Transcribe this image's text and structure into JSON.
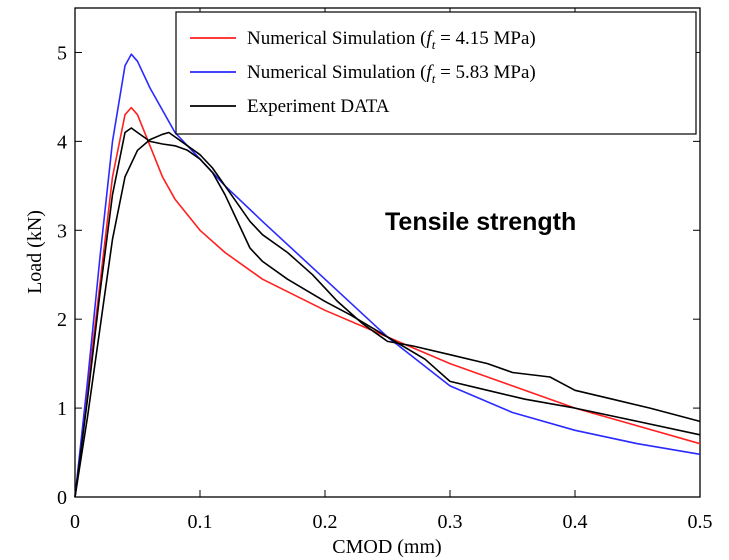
{
  "chart_data": {
    "type": "line",
    "xlabel": "CMOD (mm)",
    "ylabel": "Load (kN)",
    "xlim": [
      0,
      0.5
    ],
    "ylim": [
      0,
      5.5
    ],
    "xticks": [
      "0",
      "0.1",
      "0.2",
      "0.3",
      "0.4",
      "0.5"
    ],
    "yticks": [
      "0",
      "1",
      "2",
      "3",
      "4",
      "5"
    ],
    "grid": false,
    "legend_position": "top-right",
    "annotation": "Tensile strength",
    "legend": [
      {
        "prefix": "Numerical Simulation (",
        "symbol": "f",
        "sub": "t",
        "suffix": " = 4.15 MPa)",
        "color": "#ff2020"
      },
      {
        "prefix": "Numerical Simulation (",
        "symbol": "f",
        "sub": "t",
        "suffix": " = 5.83 MPa)",
        "color": "#2a2aff"
      },
      {
        "prefix": "Experiment DATA",
        "symbol": "",
        "sub": "",
        "suffix": "",
        "color": "#000000"
      }
    ],
    "series": [
      {
        "color": "#ff2020",
        "x": [
          0,
          0.01,
          0.02,
          0.03,
          0.04,
          0.045,
          0.05,
          0.06,
          0.07,
          0.08,
          0.1,
          0.12,
          0.15,
          0.2,
          0.25,
          0.3,
          0.35,
          0.4,
          0.45,
          0.5
        ],
        "y": [
          0,
          1.2,
          2.4,
          3.6,
          4.3,
          4.38,
          4.3,
          3.95,
          3.6,
          3.35,
          3.0,
          2.75,
          2.45,
          2.1,
          1.8,
          1.5,
          1.25,
          1.0,
          0.8,
          0.6
        ]
      },
      {
        "color": "#2a2aff",
        "x": [
          0,
          0.01,
          0.02,
          0.03,
          0.04,
          0.045,
          0.05,
          0.06,
          0.08,
          0.1,
          0.12,
          0.15,
          0.2,
          0.25,
          0.3,
          0.35,
          0.4,
          0.45,
          0.5
        ],
        "y": [
          0,
          1.3,
          2.7,
          4.0,
          4.85,
          4.98,
          4.9,
          4.6,
          4.1,
          3.8,
          3.5,
          3.1,
          2.45,
          1.8,
          1.25,
          0.95,
          0.75,
          0.6,
          0.48
        ]
      },
      {
        "color": "#000000",
        "x": [
          0,
          0.01,
          0.02,
          0.03,
          0.04,
          0.045,
          0.05,
          0.06,
          0.07,
          0.08,
          0.09,
          0.1,
          0.11,
          0.12,
          0.13,
          0.14,
          0.15,
          0.17,
          0.2,
          0.22,
          0.25,
          0.28,
          0.3,
          0.33,
          0.36,
          0.4,
          0.45,
          0.5
        ],
        "y": [
          0,
          1.1,
          2.3,
          3.4,
          4.1,
          4.15,
          4.1,
          4.0,
          3.97,
          3.95,
          3.9,
          3.8,
          3.65,
          3.4,
          3.1,
          2.8,
          2.65,
          2.45,
          2.2,
          2.05,
          1.8,
          1.55,
          1.3,
          1.2,
          1.1,
          1.0,
          0.85,
          0.7
        ]
      },
      {
        "color": "#000000",
        "x": [
          0,
          0.01,
          0.02,
          0.03,
          0.04,
          0.05,
          0.06,
          0.07,
          0.075,
          0.08,
          0.09,
          0.1,
          0.11,
          0.12,
          0.13,
          0.14,
          0.15,
          0.17,
          0.19,
          0.21,
          0.23,
          0.25,
          0.27,
          0.3,
          0.33,
          0.35,
          0.38,
          0.4,
          0.43,
          0.46,
          0.5
        ],
        "y": [
          0,
          0.9,
          1.9,
          2.9,
          3.6,
          3.9,
          4.02,
          4.08,
          4.1,
          4.05,
          3.95,
          3.85,
          3.7,
          3.5,
          3.3,
          3.1,
          2.95,
          2.75,
          2.5,
          2.2,
          1.95,
          1.75,
          1.7,
          1.6,
          1.5,
          1.4,
          1.35,
          1.2,
          1.1,
          1.0,
          0.85
        ]
      }
    ]
  }
}
